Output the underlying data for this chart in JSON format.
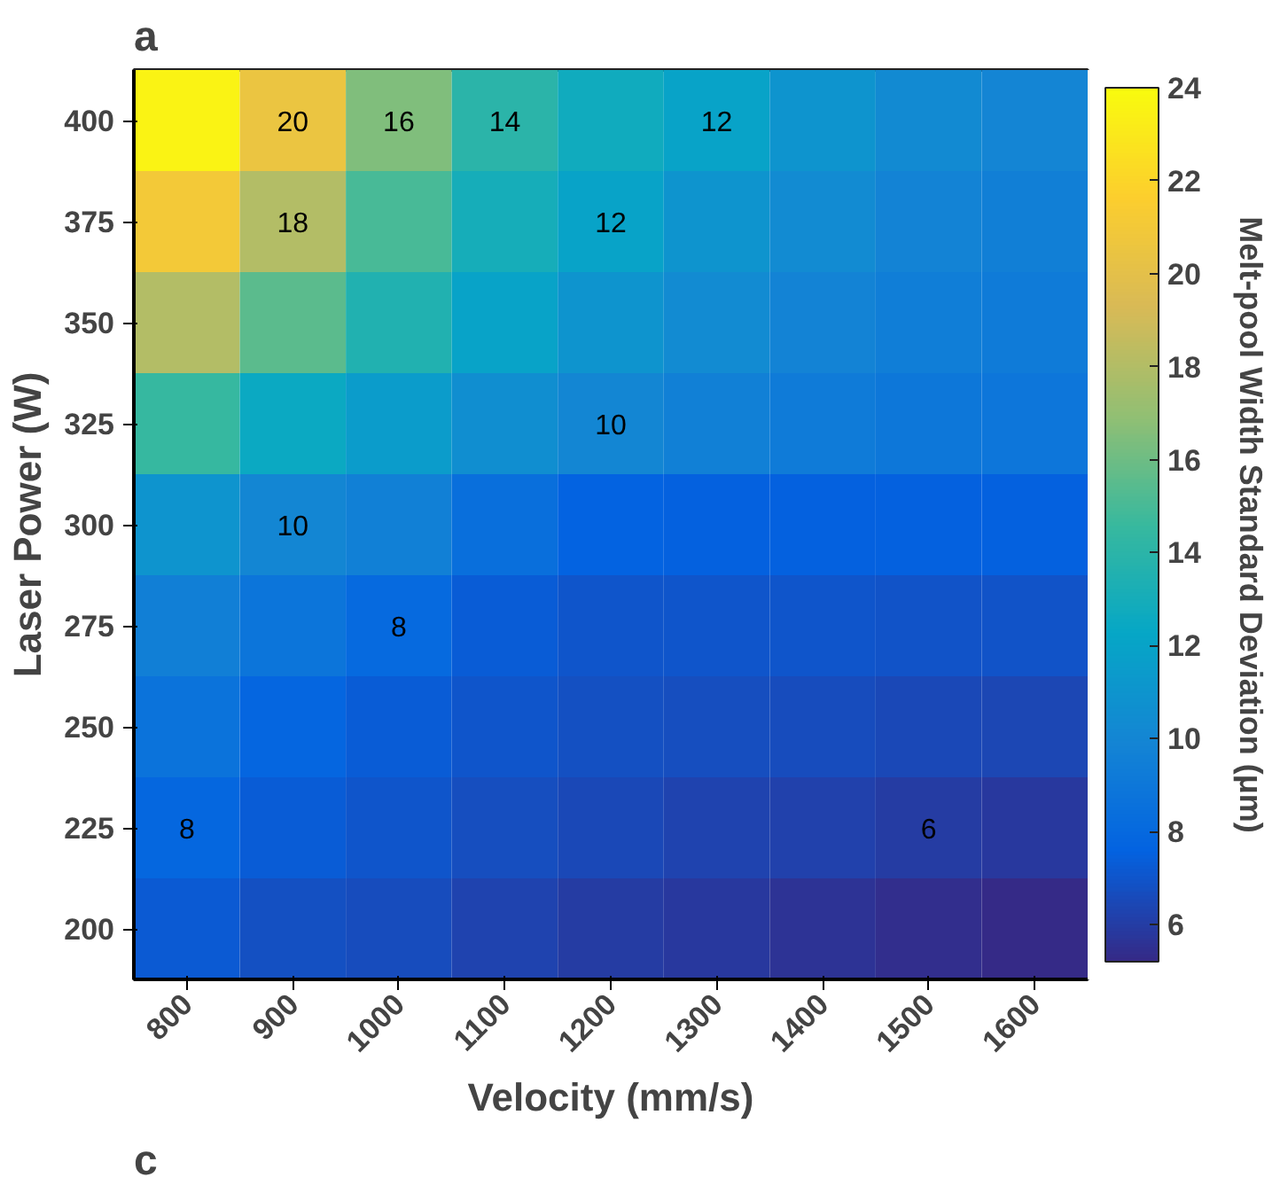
{
  "chart_data": {
    "type": "heatmap",
    "xlabel": "Velocity (mm/s)",
    "ylabel": "Laser Power (W)",
    "clabel": "Melt-pool Width Standard Deviation (μm)",
    "categories": [
      "800",
      "900",
      "1000",
      "1100",
      "1200",
      "1300",
      "1400",
      "1500",
      "1600"
    ],
    "y_categories": [
      "400",
      "375",
      "350",
      "325",
      "300",
      "275",
      "250",
      "225",
      "200"
    ],
    "cells": [
      [
        23.5,
        20.5,
        16.5,
        14,
        12.7,
        12,
        11,
        10.2,
        9.9
      ],
      [
        21,
        18,
        15,
        13,
        12,
        11,
        10.3,
        9.8,
        9.5
      ],
      [
        18,
        15.5,
        13.5,
        12,
        11,
        10.3,
        9.8,
        9.4,
        9.2
      ],
      [
        14.5,
        12.5,
        11.5,
        10.5,
        10,
        9.6,
        9.2,
        9,
        8.9
      ],
      [
        11,
        10,
        9.6,
        8.4,
        7.6,
        7.5,
        7.5,
        7.5,
        7.5
      ],
      [
        9.5,
        8.8,
        8,
        7.3,
        7,
        7,
        7,
        6.9,
        6.9
      ],
      [
        8.7,
        7.8,
        7.3,
        7,
        6.8,
        6.7,
        6.6,
        6.5,
        6.4
      ],
      [
        7.9,
        7.3,
        7,
        6.7,
        6.5,
        6.3,
        6.2,
        6,
        5.8
      ],
      [
        7.2,
        6.8,
        6.6,
        6.3,
        6,
        5.8,
        5.6,
        5.4,
        5.2
      ]
    ],
    "clim": [
      5.2,
      24
    ],
    "cticks": [
      6,
      8,
      10,
      12,
      14,
      16,
      18,
      20,
      22,
      24
    ],
    "annotations": [
      "20",
      "18",
      "16",
      "14",
      "12",
      "10",
      "12",
      "10",
      "8",
      "8",
      "6",
      "a",
      "c"
    ]
  }
}
